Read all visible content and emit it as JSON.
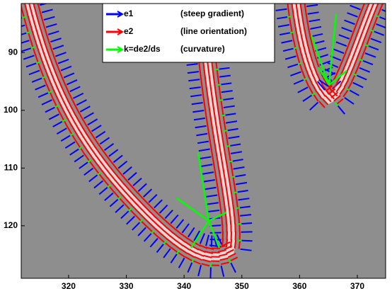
{
  "chart_data": {
    "type": "quiver",
    "series": [
      {
        "name": "e1",
        "description": "(steep gradient)",
        "color": "#0000ff"
      },
      {
        "name": "e2",
        "description": "(line orientation)",
        "color": "#ff0000"
      },
      {
        "name": "k=de2/ds",
        "description": "(curvature)",
        "color": "#00ff00"
      }
    ],
    "xlim": [
      311.8,
      374.9
    ],
    "xticks": [
      320,
      330,
      340,
      350,
      360,
      370
    ],
    "ylim": [
      81.5,
      129.1
    ],
    "yticks": [
      90,
      100,
      110,
      120
    ],
    "y_reversed": true
  }
}
